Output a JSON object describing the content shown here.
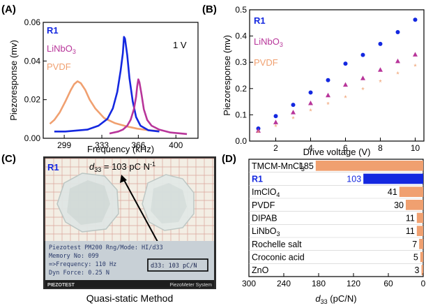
{
  "panels": {
    "a": "(A)",
    "b": "(B)",
    "c": "(C)",
    "d": "(D)"
  },
  "colors": {
    "r1": "#1428e0",
    "linbo3": "#b8359a",
    "pvdf": "#f0a070",
    "bar": "#f0a070"
  },
  "chart_data": [
    {
      "type": "line",
      "xlabel": "Frequency (kHz)",
      "ylabel": "Piezoresponse (mv)",
      "xlim": [
        280,
        420
      ],
      "ylim": [
        0,
        0.06
      ],
      "xticks": [
        "299",
        "333",
        "366",
        "400"
      ],
      "xtick_values": [
        299,
        333,
        366,
        400
      ],
      "yticks": [
        "0.00",
        "0.02",
        "0.04",
        "0.06"
      ],
      "ytick_values": [
        0,
        0.02,
        0.04,
        0.06
      ],
      "annotation": "1 V",
      "legend": [
        "R1",
        "LiNbO3",
        "PVDF"
      ],
      "series": [
        {
          "name": "PVDF",
          "x": [
            286,
            290,
            295,
            300,
            305,
            308,
            311,
            314,
            318,
            322,
            327,
            335,
            345,
            355,
            365,
            375,
            385
          ],
          "y": [
            0.0075,
            0.0095,
            0.0135,
            0.019,
            0.025,
            0.028,
            0.0295,
            0.0285,
            0.025,
            0.02,
            0.0155,
            0.0105,
            0.0078,
            0.0062,
            0.005,
            0.0042,
            0.0038
          ]
        },
        {
          "name": "R1",
          "x": [
            290,
            300,
            310,
            320,
            330,
            338,
            343,
            347,
            350,
            352,
            353,
            354,
            356,
            358,
            361,
            364,
            368,
            375,
            385
          ],
          "y": [
            0.0035,
            0.0035,
            0.004,
            0.0045,
            0.0065,
            0.01,
            0.0155,
            0.024,
            0.035,
            0.044,
            0.0525,
            0.0515,
            0.043,
            0.031,
            0.019,
            0.011,
            0.0065,
            0.0042,
            0.0035
          ]
        },
        {
          "name": "LiNbO3",
          "x": [
            340,
            348,
            352,
            356,
            359,
            362,
            364,
            365,
            366,
            367,
            369,
            371,
            374,
            378,
            385,
            395,
            410
          ],
          "y": [
            0.0025,
            0.0035,
            0.0045,
            0.0065,
            0.0095,
            0.015,
            0.0215,
            0.027,
            0.0305,
            0.029,
            0.0225,
            0.015,
            0.0095,
            0.0065,
            0.0045,
            0.003,
            0.0022
          ]
        }
      ]
    },
    {
      "type": "scatter",
      "xlabel": "Drive voltage (V)",
      "ylabel": "Piezoresponse (mv)",
      "xlim": [
        0.5,
        10.5
      ],
      "ylim": [
        0,
        0.5
      ],
      "xticks": [
        "2",
        "4",
        "6",
        "8",
        "10"
      ],
      "xtick_values": [
        2,
        4,
        6,
        8,
        10
      ],
      "yticks": [
        "0.0",
        "0.1",
        "0.2",
        "0.3",
        "0.4",
        "0.5"
      ],
      "ytick_values": [
        0,
        0.1,
        0.2,
        0.3,
        0.4,
        0.5
      ],
      "legend": [
        "R1",
        "LiNbO3",
        "PVDF"
      ],
      "x": [
        1,
        2,
        3,
        4,
        5,
        6,
        7,
        8,
        9,
        10
      ],
      "series": [
        {
          "name": "R1",
          "values": [
            0.048,
            0.095,
            0.138,
            0.185,
            0.232,
            0.295,
            0.328,
            0.37,
            0.415,
            0.462
          ]
        },
        {
          "name": "LiNbO3",
          "values": [
            0.04,
            0.072,
            0.11,
            0.145,
            0.175,
            0.215,
            0.24,
            0.272,
            0.305,
            0.33
          ]
        },
        {
          "name": "PVDF",
          "values": [
            0.032,
            0.055,
            0.085,
            0.115,
            0.14,
            0.165,
            0.195,
            0.225,
            0.255,
            0.285
          ]
        }
      ]
    },
    {
      "type": "bar",
      "orientation": "horizontal",
      "xlabel": "d33 (pC/N)",
      "xlim": [
        300,
        0
      ],
      "xticks": [
        "300",
        "240",
        "180",
        "120",
        "60",
        "0"
      ],
      "xtick_values": [
        300,
        240,
        180,
        120,
        60,
        0
      ],
      "categories": [
        "TMCM-MnCl3",
        "R1",
        "ImClO4",
        "PVDF",
        "DIPAB",
        "LiNbO3",
        "Rochelle salt",
        "Croconic acid",
        "ZnO"
      ],
      "values": [
        185,
        103,
        41,
        30,
        11,
        11,
        7,
        5,
        3
      ],
      "value_labels": [
        "185",
        "103",
        "41",
        "30",
        "11",
        "11",
        "7",
        "5",
        "3"
      ]
    }
  ],
  "photo": {
    "sample_label": "R1",
    "annotation": "d33 = 103 pC N-1",
    "lcd_line1": "Piezotest PM200   Rng/Mode: HI/d33",
    "lcd_line2": "  Memory No: 099",
    "lcd_line3": "=>Frequency: 110 Hz",
    "lcd_line4": "  Dyn Force: 0.25 N",
    "lcd_box": "d33:   103 pC/N",
    "brand_left": "PIEZOTEST",
    "brand_right": "PiezoMeter System",
    "caption": "Quasi-static Method"
  }
}
